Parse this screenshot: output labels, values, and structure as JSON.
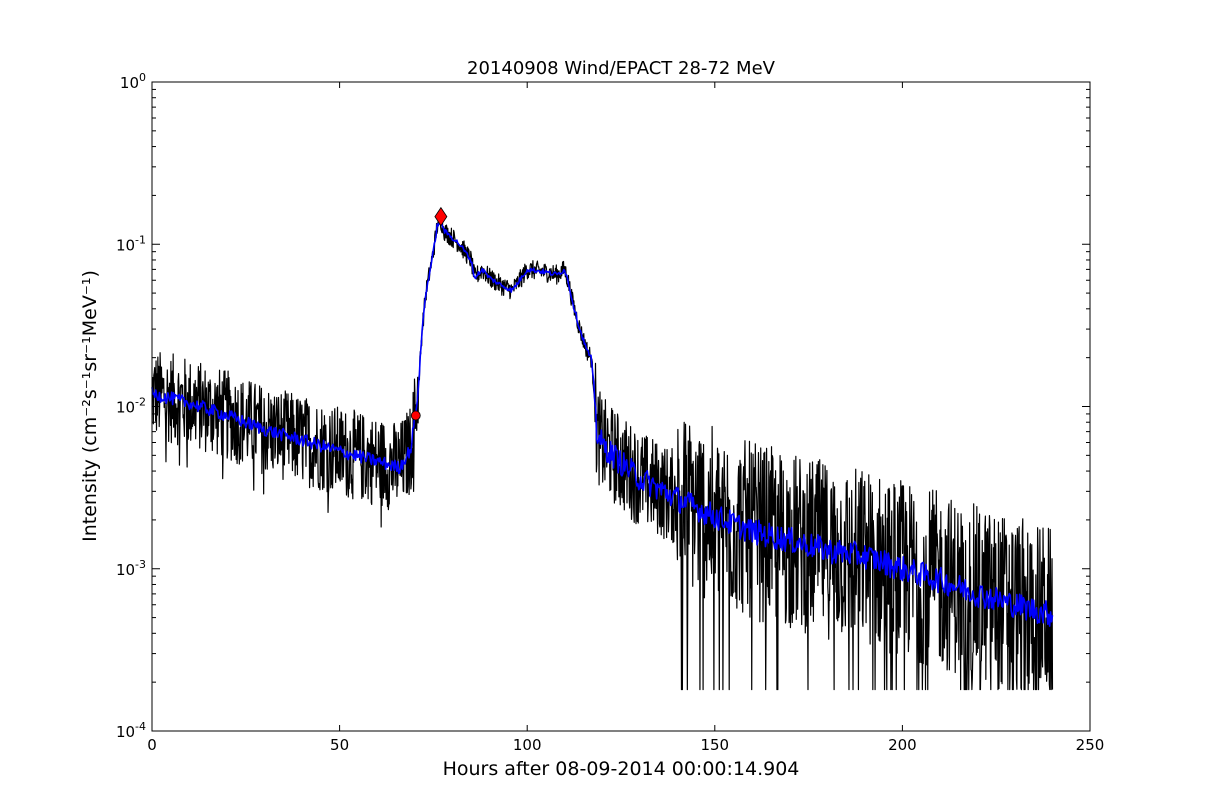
{
  "chart_data": {
    "type": "line",
    "title": "20140908 Wind/EPACT 28-72 MeV",
    "xlabel": "Hours after 08-09-2014 00:00:14.904",
    "ylabel": "Intensity (cm⁻²s⁻¹sr⁻¹MeV⁻¹)",
    "xlim": [
      0,
      250
    ],
    "ylim": [
      0.0001,
      1
    ],
    "yscale": "log",
    "grid": false,
    "x_ticks": [
      "0",
      "50",
      "100",
      "150",
      "200",
      "250"
    ],
    "y_ticks": [
      {
        "base": "10",
        "exp": "-4",
        "value": 0.0001
      },
      {
        "base": "10",
        "exp": "-3",
        "value": 0.001
      },
      {
        "base": "10",
        "exp": "-2",
        "value": 0.01
      },
      {
        "base": "10",
        "exp": "-1",
        "value": 0.1
      },
      {
        "base": "10",
        "exp": "0",
        "value": 1
      }
    ],
    "series": [
      {
        "color": "#000000",
        "style": "raw",
        "x": [
          0,
          10,
          20,
          30,
          40,
          50,
          60,
          66,
          69,
          71,
          72,
          73,
          75,
          76,
          77,
          78,
          80,
          82,
          85,
          86,
          88,
          90,
          93,
          96,
          98,
          100,
          104,
          108,
          110,
          111,
          112,
          114,
          116,
          117,
          118,
          118.5,
          120,
          125,
          130,
          140,
          150,
          160,
          170,
          180,
          190,
          200,
          210,
          220,
          230,
          240
        ],
        "y": [
          0.012,
          0.0105,
          0.0088,
          0.0072,
          0.0062,
          0.0053,
          0.0046,
          0.0042,
          0.0055,
          0.013,
          0.03,
          0.05,
          0.09,
          0.13,
          0.14,
          0.12,
          0.11,
          0.1,
          0.08,
          0.062,
          0.07,
          0.062,
          0.056,
          0.052,
          0.06,
          0.07,
          0.068,
          0.065,
          0.07,
          0.058,
          0.045,
          0.03,
          0.022,
          0.02,
          0.012,
          0.007,
          0.0058,
          0.0045,
          0.0036,
          0.0027,
          0.0021,
          0.0017,
          0.0015,
          0.0013,
          0.0012,
          0.001,
          0.00085,
          0.0007,
          0.0006,
          0.00052
        ]
      },
      {
        "color": "#0000ff",
        "style": "smoothed",
        "x": [
          0,
          10,
          20,
          30,
          40,
          50,
          60,
          66,
          69,
          71,
          72,
          73,
          75,
          76,
          77,
          78,
          80,
          82,
          85,
          86,
          88,
          90,
          93,
          96,
          98,
          100,
          104,
          108,
          110,
          111,
          112,
          114,
          116,
          117,
          118,
          118.5,
          120,
          125,
          130,
          140,
          150,
          160,
          170,
          180,
          190,
          200,
          210,
          220,
          230,
          240
        ],
        "y": [
          0.012,
          0.0105,
          0.0088,
          0.0072,
          0.0062,
          0.0053,
          0.0046,
          0.0042,
          0.0055,
          0.013,
          0.03,
          0.05,
          0.09,
          0.13,
          0.14,
          0.12,
          0.11,
          0.1,
          0.08,
          0.062,
          0.07,
          0.062,
          0.056,
          0.052,
          0.06,
          0.07,
          0.068,
          0.065,
          0.07,
          0.058,
          0.045,
          0.03,
          0.022,
          0.02,
          0.012,
          0.007,
          0.0058,
          0.0045,
          0.0036,
          0.0027,
          0.0021,
          0.0017,
          0.0015,
          0.0013,
          0.0012,
          0.001,
          0.00085,
          0.0007,
          0.0006,
          0.00052
        ]
      }
    ],
    "markers": [
      {
        "shape": "circle",
        "color": "#ff0000",
        "x": 70.3,
        "y": 0.0088
      },
      {
        "shape": "diamond",
        "color": "#ff0000",
        "x": 77,
        "y": 0.148
      }
    ]
  }
}
